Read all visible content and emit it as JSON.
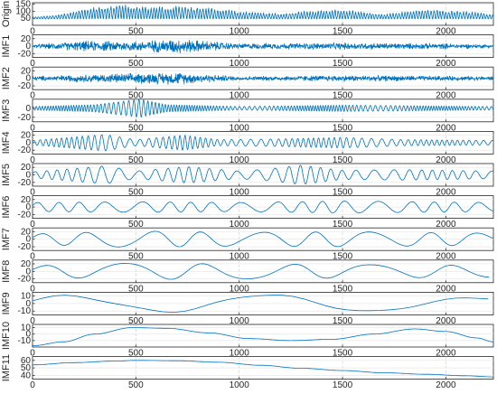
{
  "chart_data": {
    "type": "line",
    "series_color": "#0072BD",
    "grid": true,
    "x_range": [
      0,
      2230
    ],
    "x_ticks": [
      0,
      500,
      1000,
      1500,
      2000
    ],
    "panels": [
      {
        "ylabel": "Origin",
        "yticks": [
          50,
          100,
          150
        ],
        "ylim": [
          0,
          160
        ],
        "series": [
          {
            "kind": "signal",
            "base": 45,
            "envelope": [
              [
                0,
                15
              ],
              [
                100,
                25
              ],
              [
                300,
                85
              ],
              [
                420,
                110
              ],
              [
                560,
                85
              ],
              [
                700,
                95
              ],
              [
                850,
                85
              ],
              [
                1000,
                55
              ],
              [
                1200,
                40
              ],
              [
                1300,
                55
              ],
              [
                1500,
                70
              ],
              [
                1700,
                35
              ],
              [
                1900,
                70
              ],
              [
                2100,
                55
              ],
              [
                2230,
                35
              ]
            ],
            "period": 14
          }
        ]
      },
      {
        "ylabel": "IMF1",
        "yticks": [
          -20,
          0,
          20
        ],
        "ylim": [
          -30,
          30
        ],
        "series": [
          {
            "kind": "noise",
            "envelope": [
              [
                0,
                5
              ],
              [
                250,
                15
              ],
              [
                500,
                15
              ],
              [
                700,
                22
              ],
              [
                1000,
                8
              ],
              [
                1500,
                10
              ],
              [
                2000,
                8
              ],
              [
                2230,
                5
              ]
            ],
            "period": 3
          }
        ]
      },
      {
        "ylabel": "IMF2",
        "yticks": [
          -20,
          0,
          20
        ],
        "ylim": [
          -30,
          30
        ],
        "series": [
          {
            "kind": "noise",
            "envelope": [
              [
                0,
                6
              ],
              [
                300,
                12
              ],
              [
                700,
                18
              ],
              [
                1000,
                6
              ],
              [
                1500,
                9
              ],
              [
                2230,
                6
              ]
            ],
            "period": 5
          }
        ]
      },
      {
        "ylabel": "IMF3",
        "yticks": [
          -20,
          0
        ],
        "ylim": [
          -30,
          20
        ],
        "series": [
          {
            "kind": "wave",
            "envelope": [
              [
                0,
                4
              ],
              [
                300,
                8
              ],
              [
                520,
                20
              ],
              [
                650,
                8
              ],
              [
                1000,
                4
              ],
              [
                1500,
                7
              ],
              [
                2230,
                4
              ]
            ],
            "period": 14
          }
        ]
      },
      {
        "ylabel": "IMF4",
        "yticks": [
          -20,
          0,
          20
        ],
        "ylim": [
          -30,
          30
        ],
        "series": [
          {
            "kind": "wave",
            "envelope": [
              [
                0,
                6
              ],
              [
                350,
                22
              ],
              [
                500,
                8
              ],
              [
                730,
                20
              ],
              [
                900,
                8
              ],
              [
                1200,
                10
              ],
              [
                1500,
                14
              ],
              [
                1800,
                8
              ],
              [
                2230,
                6
              ]
            ],
            "period": 28
          }
        ]
      },
      {
        "ylabel": "IMF5",
        "yticks": [
          -20,
          0,
          20
        ],
        "ylim": [
          -30,
          30
        ],
        "series": [
          {
            "kind": "wave",
            "envelope": [
              [
                0,
                8
              ],
              [
                350,
                24
              ],
              [
                500,
                10
              ],
              [
                750,
                22
              ],
              [
                1000,
                10
              ],
              [
                1150,
                16
              ],
              [
                1300,
                26
              ],
              [
                1500,
                12
              ],
              [
                1800,
                14
              ],
              [
                2230,
                10
              ]
            ],
            "period": 55
          }
        ]
      },
      {
        "ylabel": "IMF6",
        "yticks": [
          -20,
          0,
          20
        ],
        "ylim": [
          -30,
          30
        ],
        "series": [
          {
            "kind": "wave",
            "envelope": [
              [
                0,
                12
              ],
              [
                500,
                14
              ],
              [
                1000,
                12
              ],
              [
                1500,
                16
              ],
              [
                2230,
                12
              ]
            ],
            "period": 110
          }
        ]
      },
      {
        "ylabel": "IMF7",
        "yticks": [
          -20,
          0,
          20
        ],
        "ylim": [
          -30,
          30
        ],
        "series": [
          {
            "kind": "wave",
            "envelope": [
              [
                0,
                14
              ],
              [
                500,
                22
              ],
              [
                1000,
                18
              ],
              [
                1500,
                20
              ],
              [
                2230,
                16
              ]
            ],
            "period": 230
          }
        ]
      },
      {
        "ylabel": "IMF8",
        "yticks": [
          -20,
          0,
          20
        ],
        "ylim": [
          -30,
          30
        ],
        "series": [
          {
            "kind": "wave",
            "envelope": [
              [
                0,
                15
              ],
              [
                500,
                22
              ],
              [
                1000,
                20
              ],
              [
                1500,
                18
              ],
              [
                2230,
                16
              ]
            ],
            "period": 340
          }
        ]
      },
      {
        "ylabel": "IMF9",
        "yticks": [
          -10,
          0,
          10
        ],
        "ylim": [
          -15,
          15
        ],
        "series": [
          {
            "kind": "wave",
            "envelope": [
              [
                0,
                11
              ],
              [
                1000,
                12
              ],
              [
                1500,
                10
              ],
              [
                2230,
                7
              ]
            ],
            "period": 840
          }
        ]
      },
      {
        "ylabel": "IMF10",
        "yticks": [
          -10,
          0,
          10
        ],
        "ylim": [
          -20,
          15
        ],
        "series": [
          {
            "kind": "points",
            "x": [
              0,
              150,
              300,
              480,
              650,
              850,
              1050,
              1250,
              1450,
              1650,
              1850,
              2000,
              2150,
              2230
            ],
            "y": [
              -18,
              -12,
              0,
              10,
              9,
              2,
              -7,
              -10,
              -8,
              0,
              8,
              4,
              -6,
              -12
            ]
          }
        ]
      },
      {
        "ylabel": "IMF11",
        "yticks": [
          40,
          50,
          60
        ],
        "ylim": [
          35,
          65
        ],
        "series": [
          {
            "kind": "points",
            "x": [
              0,
              200,
              400,
              500,
              700,
              900,
              1100,
              1300,
              1500,
              1700,
              1900,
              2100,
              2230
            ],
            "y": [
              54,
              57,
              59,
              60,
              59.5,
              57.5,
              53.5,
              49.5,
              46.5,
              43.5,
              41.5,
              39.5,
              38
            ]
          }
        ]
      }
    ]
  }
}
